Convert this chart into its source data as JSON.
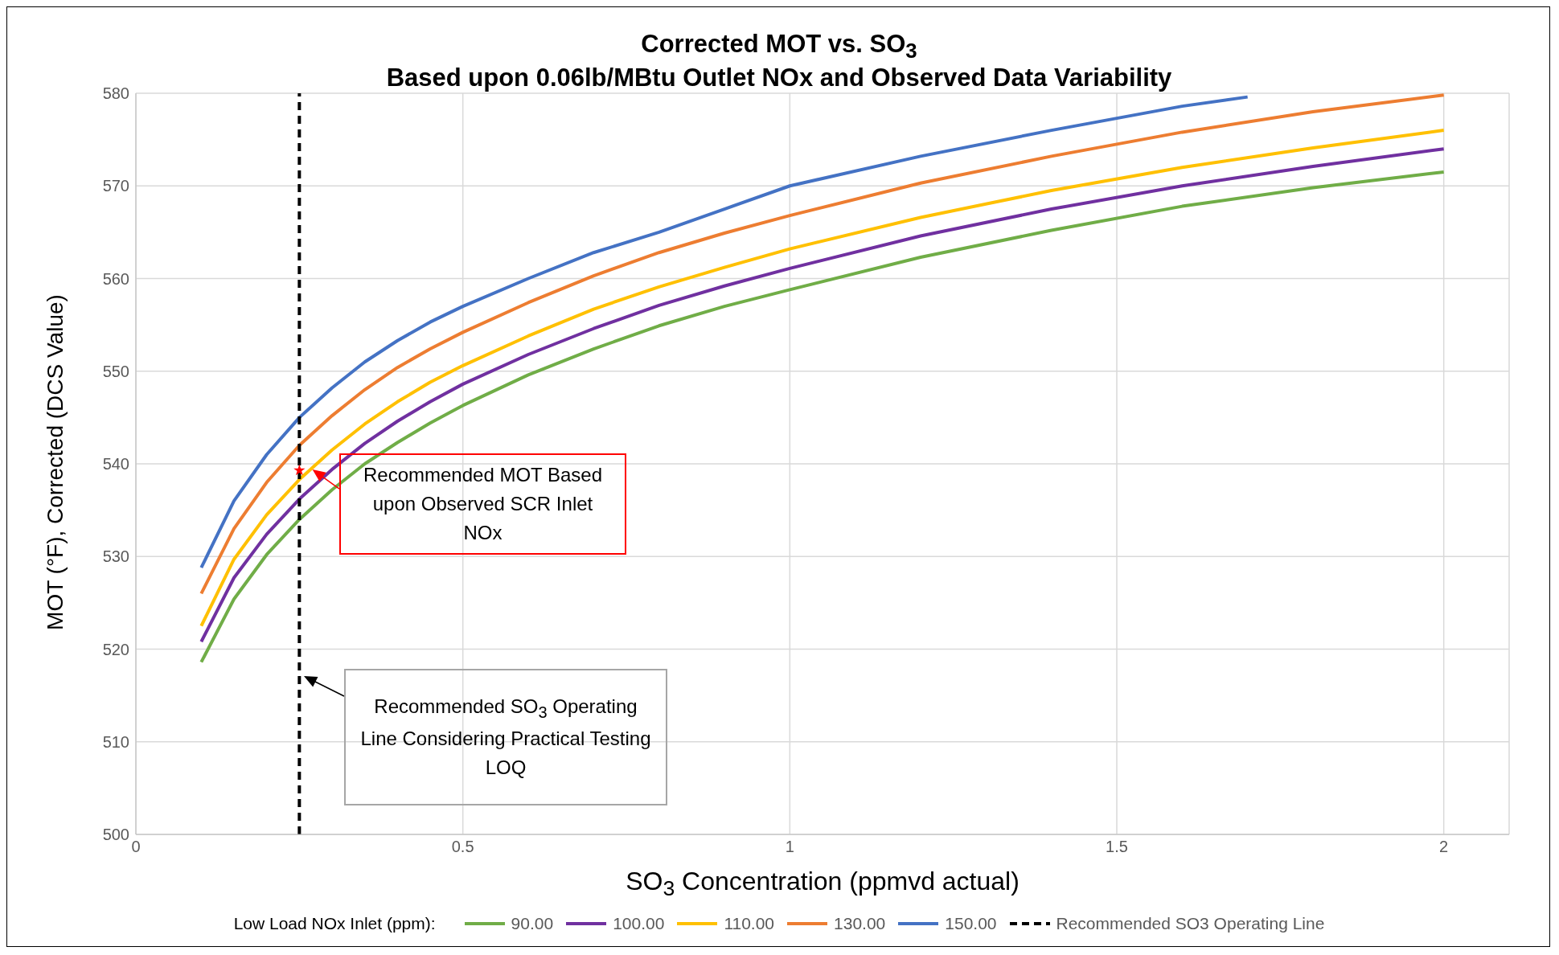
{
  "chart_data": {
    "type": "line",
    "title": "Corrected MOT vs. SO$_{3}$",
    "subtitle": "Based upon 0.06lb/MBtu Outlet NOx and Observed Data Variability",
    "xlabel": "SO$_{3}$ Concentration (ppmvd actual)",
    "ylabel": "MOT (°F), Corrected (DCS Value)",
    "legend_title": "Low Load NOx Inlet (ppm):",
    "legend": "bottom",
    "grid": true,
    "marker": "none",
    "xlim": [
      0,
      2.1
    ],
    "xticks": [
      0,
      0.5,
      1,
      1.5,
      2
    ],
    "ylim": [
      500,
      580
    ],
    "yticks": [
      500,
      510,
      520,
      530,
      540,
      550,
      560,
      570,
      580
    ],
    "x": [
      0.1,
      0.15,
      0.2,
      0.25,
      0.3,
      0.35,
      0.4,
      0.45,
      0.5,
      0.6,
      0.7,
      0.8,
      0.9,
      1.0,
      1.2,
      1.4,
      1.6,
      1.8,
      2.0
    ],
    "series": [
      {
        "name": "90.00",
        "color": "#70ad47",
        "values": [
          518.6,
          525.4,
          530.2,
          534,
          537.2,
          540,
          542.3,
          544.4,
          546.3,
          549.6,
          552.4,
          554.9,
          557,
          558.8,
          562.3,
          565.2,
          567.8,
          569.8,
          571.5
        ]
      },
      {
        "name": "100.00",
        "color": "#7030a0",
        "values": [
          520.8,
          527.7,
          532.4,
          536.2,
          539.4,
          542.2,
          544.6,
          546.7,
          548.6,
          551.8,
          554.6,
          557.1,
          559.2,
          561.1,
          564.6,
          567.5,
          570,
          572.1,
          574
        ]
      },
      {
        "name": "110.00",
        "color": "#ffc000",
        "values": [
          522.5,
          529.7,
          534.5,
          538.3,
          541.5,
          544.3,
          546.7,
          548.8,
          550.6,
          553.8,
          556.7,
          559.1,
          561.2,
          563.2,
          566.6,
          569.5,
          572,
          574.1,
          576
        ]
      },
      {
        "name": "130.00",
        "color": "#ed7d31",
        "values": [
          526,
          533,
          538,
          542,
          545.2,
          548,
          550.4,
          552.4,
          554.2,
          557.4,
          560.3,
          562.8,
          564.9,
          566.8,
          570.3,
          573.2,
          575.8,
          578,
          579.8
        ]
      },
      {
        "name": "150.00",
        "color": "#4472c4",
        "x": [
          0.1,
          0.15,
          0.2,
          0.25,
          0.3,
          0.35,
          0.4,
          0.45,
          0.5,
          0.6,
          0.7,
          0.8,
          0.9,
          1.0,
          1.2,
          1.4,
          1.6,
          1.7
        ],
        "values": [
          528.8,
          536,
          541,
          545,
          548.2,
          551,
          553.3,
          555.3,
          557,
          560,
          562.8,
          565,
          567.5,
          570,
          573.2,
          576,
          578.6,
          579.6
        ]
      },
      {
        "name": "Recommended SO3 Operating Line",
        "color": "#000000",
        "line_style": "dashed",
        "x": [
          0.25,
          0.25
        ],
        "values": [
          500,
          580
        ]
      },
      {
        "type": "scatter",
        "marker": "star",
        "color": "#ff0000",
        "x": [
          0.25
        ],
        "values": [
          539.3
        ]
      }
    ],
    "annotations": [
      {
        "text": "Recommended MOT Based upon Observed SCR Inlet NOx",
        "x": 0.27,
        "y": 539.4
      },
      "Recommended SO$_{3}$ Operating Line Considering Practical Testing LOQ"
    ]
  }
}
